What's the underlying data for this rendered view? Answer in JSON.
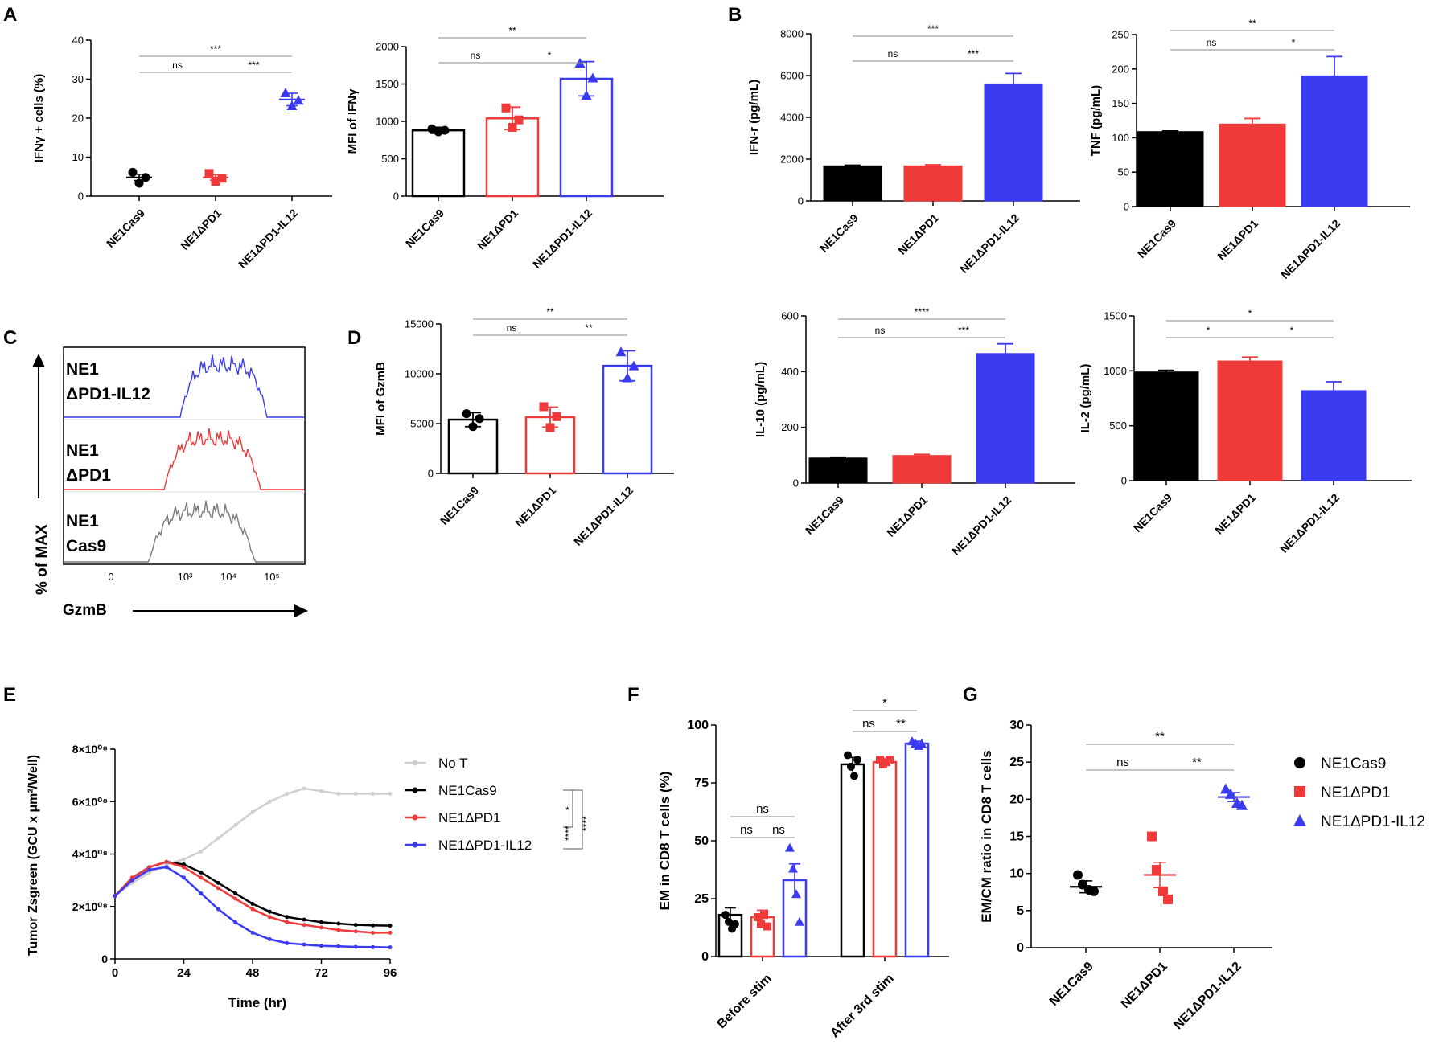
{
  "colors": {
    "black": "#000000",
    "red": "#f03a3a",
    "blue": "#3a3af0",
    "gray": "#7a7a7a",
    "light": "#cfcfcf"
  },
  "panels": {
    "A": "A",
    "B": "B",
    "C": "C",
    "D": "D",
    "E": "E",
    "F": "F",
    "G": "G"
  },
  "chart_data": [
    {
      "id": "A1",
      "type": "scatter",
      "categories": [
        "NE1Cas9",
        "NE1ΔPD1",
        "NE1ΔPD1-IL12"
      ],
      "ylabel": "IFNγ + cells (%)",
      "ylim": [
        0,
        40
      ],
      "yticks": [
        0,
        10,
        20,
        30,
        40
      ],
      "values": [
        4.8,
        4.8,
        24.8
      ],
      "errors": [
        0.8,
        0.7,
        1.6
      ],
      "points": [
        [
          6.1,
          3.3,
          4.8
        ],
        [
          5.8,
          3.8,
          4.6
        ],
        [
          26.5,
          23.2,
          24.6
        ]
      ],
      "markers": [
        "circle",
        "square",
        "triangle"
      ],
      "sig": [
        {
          "from": 0,
          "to": 1,
          "label": "ns"
        },
        {
          "from": 1,
          "to": 2,
          "label": "***"
        },
        {
          "from": 0,
          "to": 2,
          "label": "***"
        }
      ]
    },
    {
      "id": "A2",
      "type": "bar",
      "categories": [
        "NE1Cas9",
        "NE1ΔPD1",
        "NE1ΔPD1-IL12"
      ],
      "ylabel": "MFI of IFNγ",
      "ylim": [
        0,
        2000
      ],
      "yticks": [
        0,
        500,
        1000,
        1500,
        2000
      ],
      "values": [
        880,
        1040,
        1570
      ],
      "errors": [
        40,
        150,
        230
      ],
      "points": [
        [
          900,
          860,
          880
        ],
        [
          1180,
          920,
          1020
        ],
        [
          1780,
          1350,
          1580
        ]
      ],
      "markers": [
        "circle",
        "square",
        "triangle"
      ],
      "sig": [
        {
          "from": 0,
          "to": 1,
          "label": "ns"
        },
        {
          "from": 1,
          "to": 2,
          "label": "*"
        },
        {
          "from": 0,
          "to": 2,
          "label": "**"
        }
      ]
    },
    {
      "id": "B1",
      "type": "bar",
      "filled": true,
      "categories": [
        "NE1Cas9",
        "NE1ΔPD1",
        "NE1ΔPD1-IL12"
      ],
      "ylabel": "IFN-r (pg/mL)",
      "ylim": [
        0,
        8000
      ],
      "yticks": [
        0,
        2000,
        4000,
        6000,
        8000
      ],
      "values": [
        1680,
        1680,
        5600
      ],
      "errors": [
        30,
        50,
        500
      ],
      "sig": [
        {
          "from": 0,
          "to": 1,
          "label": "ns"
        },
        {
          "from": 1,
          "to": 2,
          "label": "***"
        },
        {
          "from": 0,
          "to": 2,
          "label": "***"
        }
      ]
    },
    {
      "id": "B2",
      "type": "bar",
      "filled": true,
      "categories": [
        "NE1Cas9",
        "NE1ΔPD1",
        "NE1ΔPD1-IL12"
      ],
      "ylabel": "TNF (pg/mL)",
      "ylim": [
        0,
        250
      ],
      "yticks": [
        0,
        50,
        100,
        150,
        200,
        250
      ],
      "values": [
        109,
        120,
        190
      ],
      "errors": [
        1,
        8,
        28
      ],
      "sig": [
        {
          "from": 0,
          "to": 1,
          "label": "ns"
        },
        {
          "from": 1,
          "to": 2,
          "label": "*"
        },
        {
          "from": 0,
          "to": 2,
          "label": "**"
        }
      ]
    },
    {
      "id": "C",
      "type": "histogram",
      "xlabel": "GzmB",
      "ylabel": "% of MAX",
      "xticks": [
        "0",
        "10³",
        "10⁴",
        "10⁵"
      ],
      "series": [
        {
          "name": "NE1 ΔPD1-IL12",
          "line1": "NE1",
          "line2": "ΔPD1-IL12"
        },
        {
          "name": "NE1 ΔPD1",
          "line1": "NE1",
          "line2": "ΔPD1"
        },
        {
          "name": "NE1 Cas9",
          "line1": "NE1",
          "line2": "Cas9"
        }
      ]
    },
    {
      "id": "D1",
      "type": "bar",
      "categories": [
        "NE1Cas9",
        "NE1ΔPD1",
        "NE1ΔPD1-IL12"
      ],
      "ylabel": "MFI of GzmB",
      "ylim": [
        0,
        15000
      ],
      "yticks": [
        0,
        5000,
        10000,
        15000
      ],
      "values": [
        5400,
        5650,
        10800
      ],
      "errors": [
        700,
        1000,
        1500
      ],
      "points": [
        [
          6000,
          4700,
          5500
        ],
        [
          6700,
          4600,
          5700
        ],
        [
          12200,
          9600,
          10800
        ]
      ],
      "markers": [
        "circle",
        "square",
        "triangle"
      ],
      "sig": [
        {
          "from": 0,
          "to": 1,
          "label": "ns"
        },
        {
          "from": 1,
          "to": 2,
          "label": "**"
        },
        {
          "from": 0,
          "to": 2,
          "label": "**"
        }
      ]
    },
    {
      "id": "D2",
      "type": "bar",
      "filled": true,
      "categories": [
        "NE1Cas9",
        "NE1ΔPD1",
        "NE1ΔPD1-IL12"
      ],
      "ylabel": "IL-10 (pg/mL)",
      "ylim": [
        0,
        600
      ],
      "yticks": [
        0,
        200,
        400,
        600
      ],
      "values": [
        90,
        99,
        465
      ],
      "errors": [
        3,
        4,
        35
      ],
      "sig": [
        {
          "from": 0,
          "to": 1,
          "label": "ns"
        },
        {
          "from": 1,
          "to": 2,
          "label": "***"
        },
        {
          "from": 0,
          "to": 2,
          "label": "****"
        }
      ]
    },
    {
      "id": "D3",
      "type": "bar",
      "filled": true,
      "categories": [
        "NE1Cas9",
        "NE1ΔPD1",
        "NE1ΔPD1-IL12"
      ],
      "ylabel": "IL-2 (pg/mL)",
      "ylim": [
        0,
        1500
      ],
      "yticks": [
        0,
        500,
        1000,
        1500
      ],
      "values": [
        990,
        1090,
        820
      ],
      "errors": [
        15,
        35,
        80
      ],
      "sig": [
        {
          "from": 0,
          "to": 1,
          "label": "*"
        },
        {
          "from": 1,
          "to": 2,
          "label": "*"
        },
        {
          "from": 0,
          "to": 2,
          "label": "*"
        }
      ]
    },
    {
      "id": "E",
      "type": "line",
      "xlabel": "Time (hr)",
      "ylabel": "Tumor Zsgreen (GCU x μm²/Well)",
      "xlim": [
        0,
        96
      ],
      "xticks": [
        0,
        24,
        48,
        72,
        96
      ],
      "ylim": [
        0,
        800000000.0
      ],
      "yticks": [
        0,
        200000000.0,
        400000000.0,
        600000000.0,
        800000000.0
      ],
      "ytick_labels": [
        "0",
        "2×10⁰⁸",
        "4×10⁰⁸",
        "6×10⁰⁸",
        "8×10⁰⁸"
      ],
      "x": [
        0,
        6,
        12,
        18,
        24,
        30,
        36,
        42,
        48,
        54,
        60,
        66,
        72,
        78,
        84,
        90,
        96
      ],
      "series": [
        {
          "name": "No T",
          "values": [
            240000000.0,
            290000000.0,
            330000000.0,
            360000000.0,
            380000000.0,
            410000000.0,
            460000000.0,
            510000000.0,
            560000000.0,
            600000000.0,
            630000000.0,
            650000000.0,
            640000000.0,
            630000000.0,
            630000000.0,
            630000000.0,
            630000000.0
          ]
        },
        {
          "name": "NE1Cas9",
          "values": [
            240000000.0,
            310000000.0,
            350000000.0,
            370000000.0,
            360000000.0,
            330000000.0,
            290000000.0,
            250000000.0,
            210000000.0,
            180000000.0,
            160000000.0,
            150000000.0,
            140000000.0,
            135000000.0,
            130000000.0,
            128000000.0,
            127000000.0
          ]
        },
        {
          "name": "NE1ΔPD1",
          "values": [
            240000000.0,
            310000000.0,
            350000000.0,
            370000000.0,
            350000000.0,
            310000000.0,
            270000000.0,
            230000000.0,
            190000000.0,
            160000000.0,
            140000000.0,
            130000000.0,
            120000000.0,
            110000000.0,
            105000000.0,
            100000000.0,
            100000000.0
          ]
        },
        {
          "name": "NE1ΔPD1-IL12",
          "values": [
            240000000.0,
            300000000.0,
            340000000.0,
            350000000.0,
            310000000.0,
            250000000.0,
            190000000.0,
            140000000.0,
            100000000.0,
            75000000.0,
            60000000.0,
            55000000.0,
            50000000.0,
            48000000.0,
            46000000.0,
            45000000.0,
            44000000.0
          ]
        }
      ],
      "sig": [
        "*",
        "****",
        "****"
      ]
    },
    {
      "id": "F",
      "type": "bar",
      "groups": [
        "Before stim",
        "After 3rd stim"
      ],
      "series_names": [
        "NE1Cas9",
        "NE1ΔPD1",
        "NE1ΔPD1-IL12"
      ],
      "ylabel": "EM in CD8 T cells (%)",
      "ylim": [
        0,
        100
      ],
      "yticks": [
        0,
        25,
        50,
        75,
        100
      ],
      "values": [
        [
          18,
          17,
          33
        ],
        [
          83,
          84,
          92
        ]
      ],
      "errors": [
        [
          3,
          3,
          7
        ],
        [
          3,
          1,
          1
        ]
      ],
      "points": [
        [
          [
            18,
            15,
            12,
            14
          ],
          [
            17,
            14,
            18,
            13
          ],
          [
            47,
            38,
            27,
            15
          ]
        ],
        [
          [
            87,
            82,
            78,
            85
          ],
          [
            85,
            83,
            84,
            85
          ],
          [
            93,
            92,
            91,
            92
          ]
        ]
      ],
      "sig_before": [
        "ns",
        "ns",
        "ns"
      ],
      "sig_after": [
        "ns",
        "**",
        "*"
      ]
    },
    {
      "id": "G",
      "type": "scatter",
      "categories": [
        "NE1Cas9",
        "NE1ΔPD1",
        "NE1ΔPD1-IL12"
      ],
      "ylabel": "EM/CM ratio in CD8 T cells",
      "ylim": [
        0,
        30
      ],
      "yticks": [
        0,
        5,
        10,
        15,
        20,
        25,
        30
      ],
      "values": [
        8.2,
        9.8,
        20.3
      ],
      "errors": [
        0.8,
        1.7,
        0.6
      ],
      "points": [
        [
          9.8,
          8.5,
          7.8,
          7.6
        ],
        [
          15.0,
          10.5,
          7.6,
          6.5
        ],
        [
          21.4,
          20.7,
          19.5,
          19.2
        ]
      ],
      "markers": [
        "circle",
        "square",
        "triangle"
      ],
      "sig": [
        {
          "from": 0,
          "to": 1,
          "label": "ns"
        },
        {
          "from": 1,
          "to": 2,
          "label": "**"
        },
        {
          "from": 0,
          "to": 2,
          "label": "**"
        }
      ],
      "legend": [
        "NE1Cas9",
        "NE1ΔPD1",
        "NE1ΔPD1-IL12"
      ]
    }
  ]
}
